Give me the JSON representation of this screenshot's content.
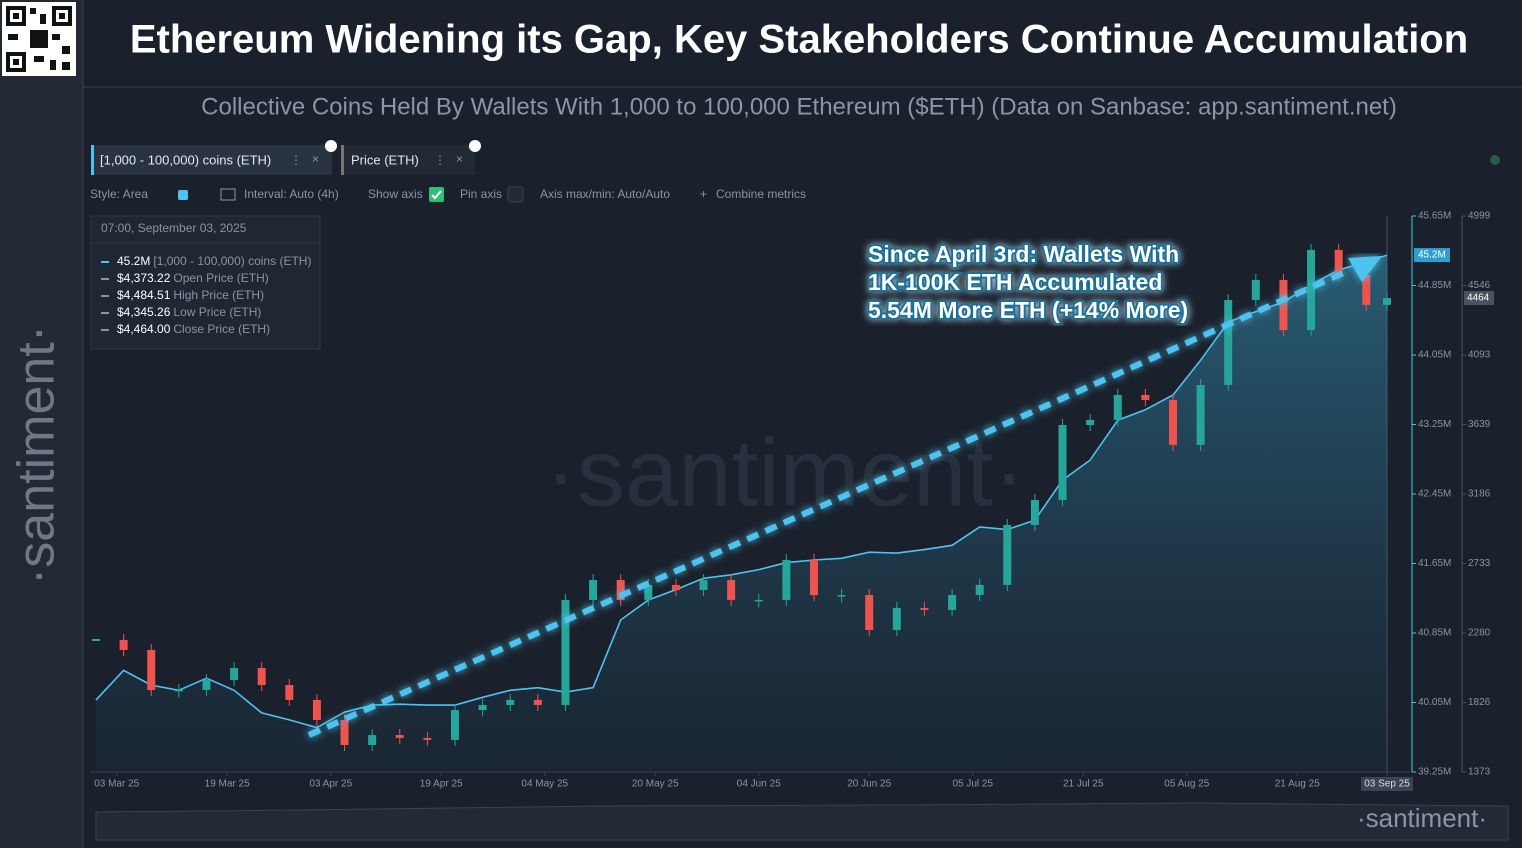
{
  "header": {
    "title": "Ethereum Widening its Gap, Key Stakeholders Continue Accumulation",
    "subtitle": "Collective Coins Held By Wallets With 1,000 to 100,000 Ethereum ($ETH) (Data on Sanbase: app.santiment.net)",
    "brand": "·santiment·"
  },
  "tabs": [
    "[1,000 - 100,000) coins (ETH)",
    "Price (ETH)"
  ],
  "toolbar": [
    "Style: Area",
    "Interval: Auto (4h)",
    "Show axis",
    "Pin axis",
    "Axis max/min: Auto/Auto",
    "Combine metrics"
  ],
  "tooltip": {
    "date": "07:00, September 03, 2025",
    "rows": [
      [
        "45.2M",
        "[1,000 - 100,000) coins (ETH)"
      ],
      [
        "$4,373.22",
        "Open Price (ETH)"
      ],
      [
        "$4,484.51",
        "High Price (ETH)"
      ],
      [
        "$4,345.26",
        "Low Price (ETH)"
      ],
      [
        "$4,464.00",
        "Close Price (ETH)"
      ]
    ]
  },
  "chart_data": {
    "type": "area",
    "annotation": [
      "Since April 3rd: Wallets With",
      "1K-100K ETH Accumulated",
      "5.54M More ETH (+14% More)"
    ],
    "x": [
      "28 Feb 25",
      "04 Mar 25",
      "08 Mar 25",
      "12 Mar 25",
      "16 Mar 25",
      "20 Mar 25",
      "24 Mar 25",
      "28 Mar 25",
      "01 Apr 25",
      "05 Apr 25",
      "09 Apr 25",
      "13 Apr 25",
      "17 Apr 25",
      "21 Apr 25",
      "25 Apr 25",
      "29 Apr 25",
      "03 May 25",
      "07 May 25",
      "11 May 25",
      "15 May 25",
      "19 May 25",
      "23 May 25",
      "27 May 25",
      "31 May 25",
      "04 Jun 25",
      "08 Jun 25",
      "12 Jun 25",
      "16 Jun 25",
      "20 Jun 25",
      "24 Jun 25",
      "28 Jun 25",
      "02 Jul 25",
      "06 Jul 25",
      "10 Jul 25",
      "14 Jul 25",
      "18 Jul 25",
      "22 Jul 25",
      "26 Jul 25",
      "30 Jul 25",
      "03 Aug 25",
      "07 Aug 25",
      "11 Aug 25",
      "15 Aug 25",
      "19 Aug 25",
      "23 Aug 25",
      "27 Aug 25",
      "31 Aug 25",
      "03 Sep 25"
    ],
    "xlim": [
      "28 Feb 25",
      "03 Sep 25"
    ],
    "xticks": [
      "03 Mar 25",
      "19 Mar 25",
      "03 Apr 25",
      "19 Apr 25",
      "04 May 25",
      "20 May 25",
      "04 Jun 25",
      "20 Jun 25",
      "05 Jul 25",
      "21 Jul 25",
      "05 Aug 25",
      "21 Aug 25",
      "03 Sep 25"
    ],
    "ylim": [
      39.25,
      45.65
    ],
    "yticks": [
      {
        "value": 39.25,
        "label": "39.25M"
      },
      {
        "value": 40.05,
        "label": "40.05M"
      },
      {
        "value": 40.85,
        "label": "40.85M"
      },
      {
        "value": 41.65,
        "label": "41.65M"
      },
      {
        "value": 42.45,
        "label": "42.45M"
      },
      {
        "value": 43.25,
        "label": "43.25M"
      },
      {
        "value": 44.05,
        "label": "44.05M"
      },
      {
        "value": 44.85,
        "label": "44.85M"
      },
      {
        "value": 45.65,
        "label": "45.65M"
      }
    ],
    "y2lim": [
      1373,
      4999
    ],
    "y2ticks": [
      1373,
      1826,
      2280,
      2733,
      3186,
      3639,
      4093,
      4546,
      4999
    ],
    "current_labels": [
      "45.2M",
      "4464"
    ],
    "series": [
      {
        "name": "[1,000 - 100,000) coins (ETH)",
        "color": "#4fc3ef",
        "values": [
          40.08,
          40.42,
          40.25,
          40.19,
          40.33,
          40.19,
          39.93,
          39.85,
          39.76,
          39.94,
          40.02,
          40.03,
          40.02,
          40.02,
          40.11,
          40.19,
          40.22,
          40.17,
          40.22,
          41.0,
          41.23,
          41.35,
          41.48,
          41.52,
          41.58,
          41.66,
          41.69,
          41.71,
          41.78,
          41.77,
          41.81,
          41.86,
          42.07,
          42.04,
          42.15,
          42.61,
          42.84,
          43.3,
          43.42,
          43.59,
          43.99,
          44.43,
          44.55,
          44.66,
          44.86,
          45.03,
          45.12,
          45.2
        ]
      },
      {
        "name": "Price (ETH)",
        "color": "#26a69a",
        "axis": "y2",
        "values": [
          2234,
          2169,
          1908,
          1908,
          1973,
          2051,
          1940,
          1843,
          1712,
          1549,
          1614,
          1595,
          1582,
          1777,
          1810,
          1843,
          1810,
          2495,
          2625,
          2495,
          2593,
          2560,
          2625,
          2495,
          2495,
          2756,
          2527,
          2527,
          2299,
          2443,
          2430,
          2527,
          2593,
          2984,
          3147,
          3636,
          3669,
          3832,
          3799,
          3506,
          3897,
          4451,
          4582,
          4255,
          4778,
          4614,
          4419,
          4464
        ]
      }
    ]
  }
}
